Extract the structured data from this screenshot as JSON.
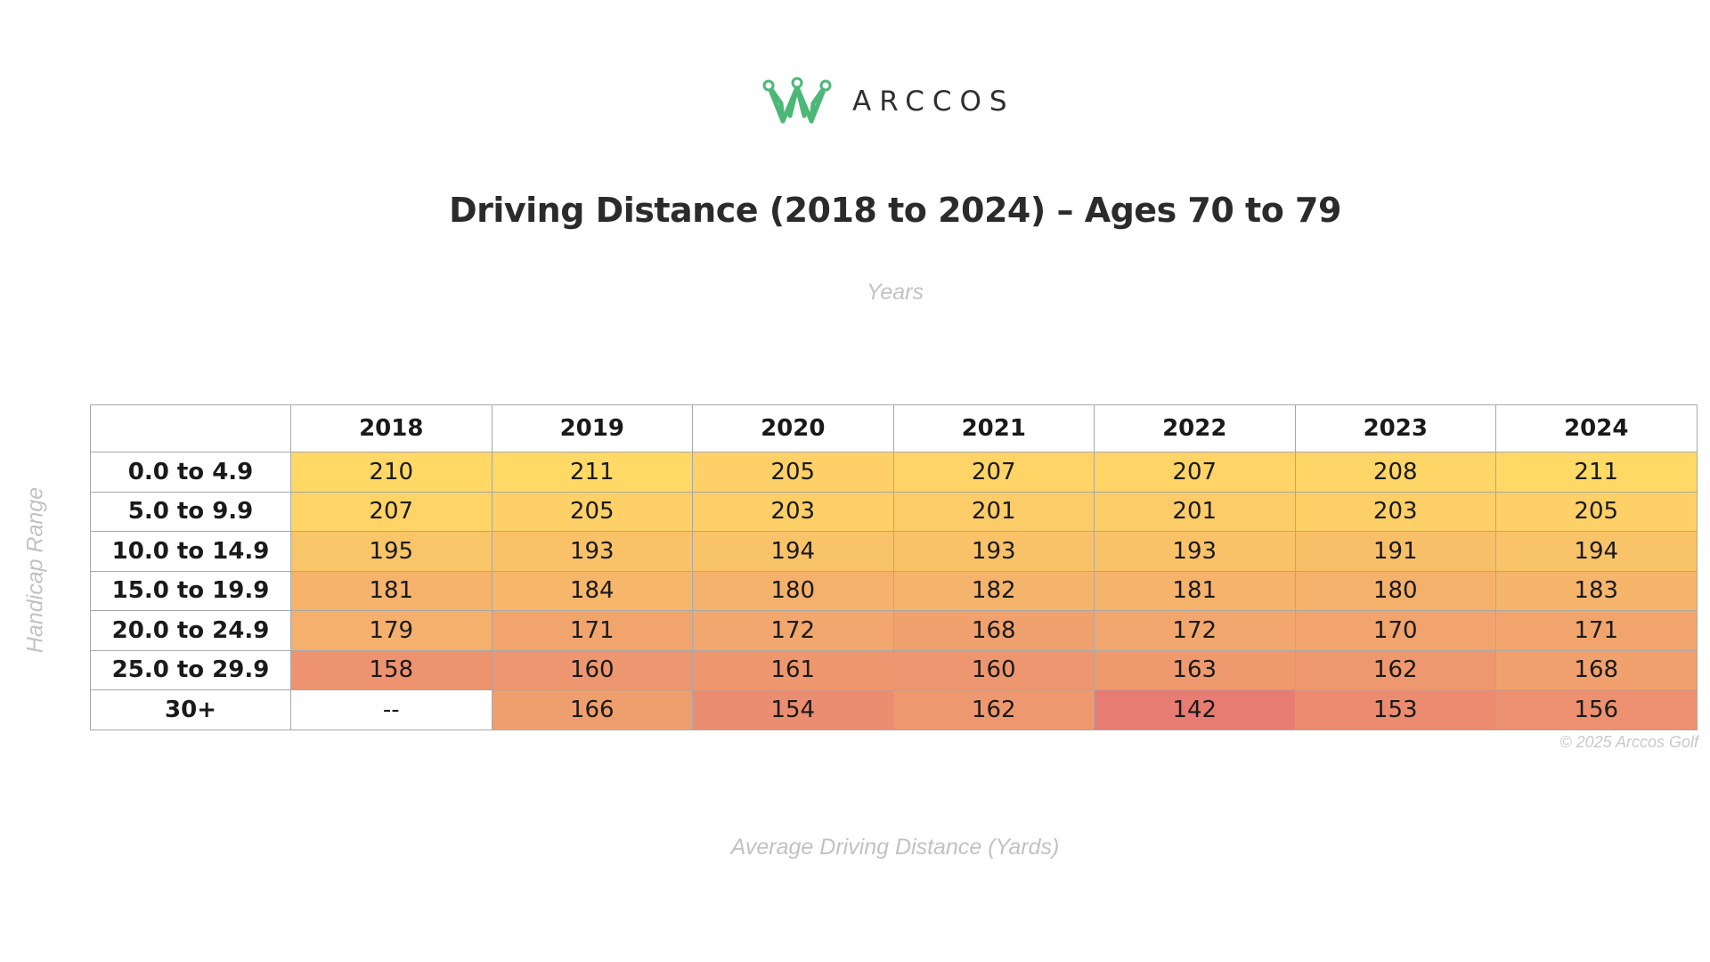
{
  "brand": {
    "name": "ARCCOS",
    "logo_color": "#4cb877"
  },
  "chart_data": {
    "type": "heatmap",
    "title": "Driving Distance (2018 to 2024) – Ages 70 to 79",
    "xlabel": "Years",
    "ylabel": "Handicap Range",
    "caption": "Average Driving Distance (Yards)",
    "x": [
      "2018",
      "2019",
      "2020",
      "2021",
      "2022",
      "2023",
      "2024"
    ],
    "y": [
      "0.0 to 4.9",
      "5.0 to 9.9",
      "10.0 to 14.9",
      "15.0 to 19.9",
      "20.0 to 24.9",
      "25.0 to 29.9",
      "30+"
    ],
    "values": [
      [
        210,
        211,
        205,
        207,
        207,
        208,
        211
      ],
      [
        207,
        205,
        203,
        201,
        201,
        203,
        205
      ],
      [
        195,
        193,
        194,
        193,
        193,
        191,
        194
      ],
      [
        181,
        184,
        180,
        182,
        181,
        180,
        183
      ],
      [
        179,
        171,
        172,
        168,
        172,
        170,
        171
      ],
      [
        158,
        160,
        161,
        160,
        163,
        162,
        168
      ],
      [
        null,
        166,
        154,
        162,
        142,
        153,
        156
      ]
    ],
    "missing_label": "--",
    "color_scale": {
      "low": "#e77c72",
      "mid": "#f3ad6c",
      "high": "#ffd966"
    }
  },
  "copyright": "© 2025 Arccos Golf"
}
